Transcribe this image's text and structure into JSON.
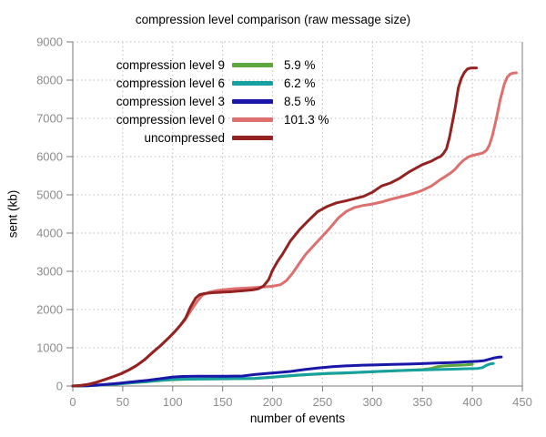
{
  "chart_data": {
    "type": "line",
    "title": "compression level comparison (raw message size)",
    "xlabel": "number of events",
    "ylabel": "sent (kb)",
    "xlim": [
      0,
      450
    ],
    "ylim": [
      0,
      9000
    ],
    "xticks": [
      0,
      50,
      100,
      150,
      200,
      250,
      300,
      350,
      400,
      450
    ],
    "yticks": [
      0,
      1000,
      2000,
      3000,
      4000,
      5000,
      6000,
      7000,
      8000,
      9000
    ],
    "grid": "dotted",
    "legend_position": "top-left",
    "style": {
      "grid_color": "#bdbdbd",
      "axis_color": "#7a7a7a",
      "tick_label_color": "#8c8c8c",
      "background": "#ffffff"
    },
    "series": [
      {
        "name": "compression level 9",
        "ratio": "5.9 %",
        "color": "#5ea73f",
        "points": [
          [
            0,
            0
          ],
          [
            15,
            8
          ],
          [
            30,
            26
          ],
          [
            45,
            52
          ],
          [
            60,
            84
          ],
          [
            75,
            115
          ],
          [
            90,
            148
          ],
          [
            100,
            165
          ],
          [
            112,
            175
          ],
          [
            125,
            180
          ],
          [
            140,
            183
          ],
          [
            155,
            187
          ],
          [
            170,
            192
          ],
          [
            182,
            196
          ],
          [
            195,
            220
          ],
          [
            210,
            250
          ],
          [
            225,
            280
          ],
          [
            240,
            305
          ],
          [
            255,
            325
          ],
          [
            273,
            340
          ],
          [
            290,
            360
          ],
          [
            305,
            378
          ],
          [
            320,
            395
          ],
          [
            336,
            415
          ],
          [
            350,
            430
          ],
          [
            358,
            455
          ],
          [
            365,
            505
          ],
          [
            372,
            525
          ],
          [
            380,
            535
          ],
          [
            388,
            545
          ],
          [
            394,
            552
          ],
          [
            400,
            570
          ]
        ]
      },
      {
        "name": "compression level 6",
        "ratio": "6.2 %",
        "color": "#16a1a0",
        "points": [
          [
            0,
            0
          ],
          [
            15,
            8
          ],
          [
            30,
            28
          ],
          [
            45,
            55
          ],
          [
            60,
            88
          ],
          [
            75,
            120
          ],
          [
            90,
            155
          ],
          [
            100,
            172
          ],
          [
            112,
            182
          ],
          [
            125,
            186
          ],
          [
            140,
            188
          ],
          [
            155,
            192
          ],
          [
            170,
            196
          ],
          [
            182,
            200
          ],
          [
            195,
            225
          ],
          [
            210,
            255
          ],
          [
            225,
            285
          ],
          [
            240,
            310
          ],
          [
            255,
            330
          ],
          [
            273,
            345
          ],
          [
            290,
            365
          ],
          [
            305,
            380
          ],
          [
            320,
            395
          ],
          [
            336,
            410
          ],
          [
            350,
            420
          ],
          [
            365,
            432
          ],
          [
            380,
            440
          ],
          [
            395,
            452
          ],
          [
            405,
            460
          ],
          [
            410,
            480
          ],
          [
            414,
            540
          ],
          [
            418,
            580
          ],
          [
            421,
            590
          ]
        ]
      },
      {
        "name": "compression level 3",
        "ratio": "8.5 %",
        "color": "#1a16a8",
        "points": [
          [
            0,
            0
          ],
          [
            15,
            10
          ],
          [
            30,
            35
          ],
          [
            45,
            70
          ],
          [
            60,
            110
          ],
          [
            75,
            150
          ],
          [
            90,
            200
          ],
          [
            100,
            235
          ],
          [
            110,
            250
          ],
          [
            125,
            255
          ],
          [
            140,
            255
          ],
          [
            155,
            258
          ],
          [
            170,
            262
          ],
          [
            182,
            300
          ],
          [
            195,
            330
          ],
          [
            205,
            350
          ],
          [
            218,
            380
          ],
          [
            232,
            430
          ],
          [
            245,
            470
          ],
          [
            260,
            505
          ],
          [
            273,
            525
          ],
          [
            290,
            545
          ],
          [
            305,
            555
          ],
          [
            320,
            565
          ],
          [
            336,
            575
          ],
          [
            350,
            585
          ],
          [
            364,
            600
          ],
          [
            380,
            615
          ],
          [
            392,
            630
          ],
          [
            400,
            640
          ],
          [
            406,
            650
          ],
          [
            412,
            665
          ],
          [
            417,
            700
          ],
          [
            422,
            735
          ],
          [
            426,
            755
          ],
          [
            429,
            760
          ]
        ]
      },
      {
        "name": "compression level 0",
        "ratio": "101.3 %",
        "color": "#de6f6f",
        "points": [
          [
            0,
            0
          ],
          [
            8,
            15
          ],
          [
            16,
            45
          ],
          [
            24,
            100
          ],
          [
            32,
            170
          ],
          [
            40,
            240
          ],
          [
            48,
            320
          ],
          [
            56,
            420
          ],
          [
            64,
            540
          ],
          [
            72,
            690
          ],
          [
            80,
            880
          ],
          [
            88,
            1060
          ],
          [
            96,
            1260
          ],
          [
            104,
            1480
          ],
          [
            112,
            1720
          ],
          [
            119,
            2000
          ],
          [
            125,
            2230
          ],
          [
            130,
            2380
          ],
          [
            136,
            2450
          ],
          [
            145,
            2500
          ],
          [
            155,
            2530
          ],
          [
            165,
            2550
          ],
          [
            178,
            2570
          ],
          [
            190,
            2590
          ],
          [
            200,
            2610
          ],
          [
            208,
            2650
          ],
          [
            214,
            2760
          ],
          [
            220,
            2950
          ],
          [
            226,
            3180
          ],
          [
            233,
            3440
          ],
          [
            242,
            3700
          ],
          [
            250,
            3920
          ],
          [
            258,
            4150
          ],
          [
            266,
            4400
          ],
          [
            274,
            4570
          ],
          [
            282,
            4670
          ],
          [
            290,
            4720
          ],
          [
            300,
            4760
          ],
          [
            310,
            4820
          ],
          [
            318,
            4880
          ],
          [
            327,
            4940
          ],
          [
            336,
            5000
          ],
          [
            345,
            5070
          ],
          [
            350,
            5120
          ],
          [
            359,
            5230
          ],
          [
            368,
            5400
          ],
          [
            373,
            5480
          ],
          [
            378,
            5570
          ],
          [
            382,
            5650
          ],
          [
            387,
            5800
          ],
          [
            391,
            5900
          ],
          [
            396,
            5990
          ],
          [
            400,
            6030
          ],
          [
            405,
            6060
          ],
          [
            410,
            6090
          ],
          [
            414,
            6160
          ],
          [
            417,
            6300
          ],
          [
            420,
            6550
          ],
          [
            424,
            7000
          ],
          [
            428,
            7500
          ],
          [
            432,
            7900
          ],
          [
            435,
            8080
          ],
          [
            438,
            8160
          ],
          [
            441,
            8185
          ],
          [
            444,
            8190
          ]
        ]
      },
      {
        "name": "uncompressed",
        "ratio": "",
        "color": "#942220",
        "points": [
          [
            0,
            0
          ],
          [
            8,
            15
          ],
          [
            16,
            45
          ],
          [
            24,
            100
          ],
          [
            32,
            170
          ],
          [
            40,
            240
          ],
          [
            48,
            320
          ],
          [
            56,
            420
          ],
          [
            64,
            540
          ],
          [
            72,
            690
          ],
          [
            80,
            880
          ],
          [
            88,
            1060
          ],
          [
            96,
            1260
          ],
          [
            102,
            1420
          ],
          [
            108,
            1600
          ],
          [
            113,
            1780
          ],
          [
            118,
            2075
          ],
          [
            123,
            2300
          ],
          [
            127,
            2390
          ],
          [
            132,
            2420
          ],
          [
            140,
            2440
          ],
          [
            150,
            2455
          ],
          [
            160,
            2470
          ],
          [
            170,
            2490
          ],
          [
            180,
            2515
          ],
          [
            186,
            2545
          ],
          [
            191,
            2620
          ],
          [
            196,
            2780
          ],
          [
            200,
            3030
          ],
          [
            205,
            3260
          ],
          [
            210,
            3450
          ],
          [
            218,
            3800
          ],
          [
            227,
            4090
          ],
          [
            236,
            4330
          ],
          [
            245,
            4560
          ],
          [
            255,
            4700
          ],
          [
            264,
            4790
          ],
          [
            273,
            4840
          ],
          [
            282,
            4900
          ],
          [
            291,
            4960
          ],
          [
            300,
            5070
          ],
          [
            309,
            5230
          ],
          [
            318,
            5310
          ],
          [
            327,
            5430
          ],
          [
            336,
            5590
          ],
          [
            345,
            5720
          ],
          [
            350,
            5790
          ],
          [
            359,
            5880
          ],
          [
            365,
            5970
          ],
          [
            368,
            6000
          ],
          [
            371,
            6080
          ],
          [
            374,
            6200
          ],
          [
            377,
            6500
          ],
          [
            380,
            6900
          ],
          [
            383,
            7300
          ],
          [
            386,
            7800
          ],
          [
            389,
            8050
          ],
          [
            392,
            8200
          ],
          [
            395,
            8290
          ],
          [
            398,
            8315
          ],
          [
            404,
            8320
          ]
        ]
      }
    ]
  }
}
